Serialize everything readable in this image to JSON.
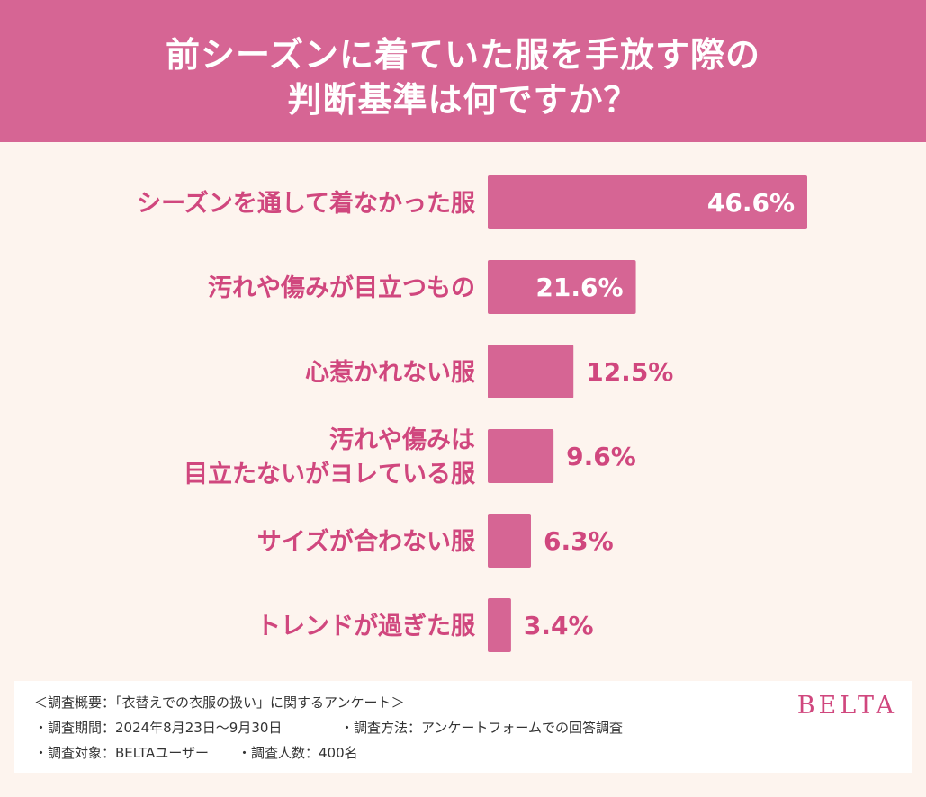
{
  "header": {
    "title_line_1": "前シーズンに着ていた服を手放す際の",
    "title_line_2": "判断基準は何ですか？"
  },
  "chart_data": {
    "type": "bar",
    "orientation": "horizontal",
    "categories": [
      [
        "シーズンを通して着なかった服"
      ],
      [
        "汚れや傷みが目立つもの"
      ],
      [
        "心惹かれない服"
      ],
      [
        "汚れや傷みは",
        "目立たないがヨレている服"
      ],
      [
        "サイズが合わない服"
      ],
      [
        "トレンドが過ぎた服"
      ]
    ],
    "values": [
      46.6,
      21.6,
      12.5,
      9.6,
      6.3,
      3.4
    ],
    "value_labels": [
      "46.6%",
      "21.6%",
      "12.5%",
      "9.6%",
      "6.3%",
      "3.4%"
    ],
    "unit": "%",
    "bar_color": "#d66594",
    "label_color": "#d0477e"
  },
  "footer": {
    "line_1": "＜調査概要：「衣替えでの衣服の扱い」に関するアンケート＞",
    "period": "・調査期間：2024年8月23日〜9月30日",
    "method": "・調査方法：アンケートフォームでの回答調査",
    "target": "・調査対象：BELTAユーザー",
    "count": "・調査人数：400名",
    "brand": "BELTA"
  }
}
